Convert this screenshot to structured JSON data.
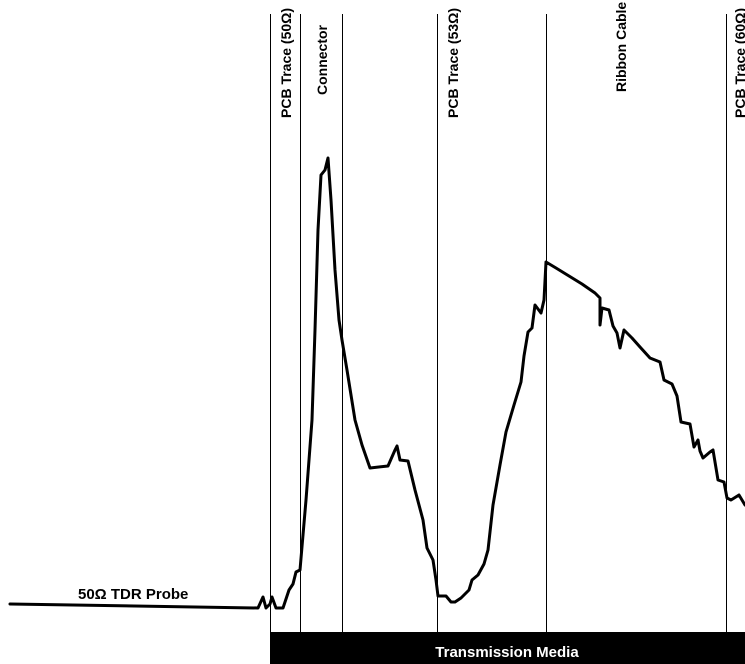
{
  "segments": [
    "PCB Trace (50Ω)",
    "Connector",
    "PCB Trace (53Ω)",
    "Ribbon Cable",
    "PCB Trace (60Ω)"
  ],
  "probe_label": "50Ω TDR Probe",
  "media_label": "Transmission Media",
  "colors": {
    "trace": "#000000",
    "bar": "#000000",
    "divider": "#000000"
  }
}
